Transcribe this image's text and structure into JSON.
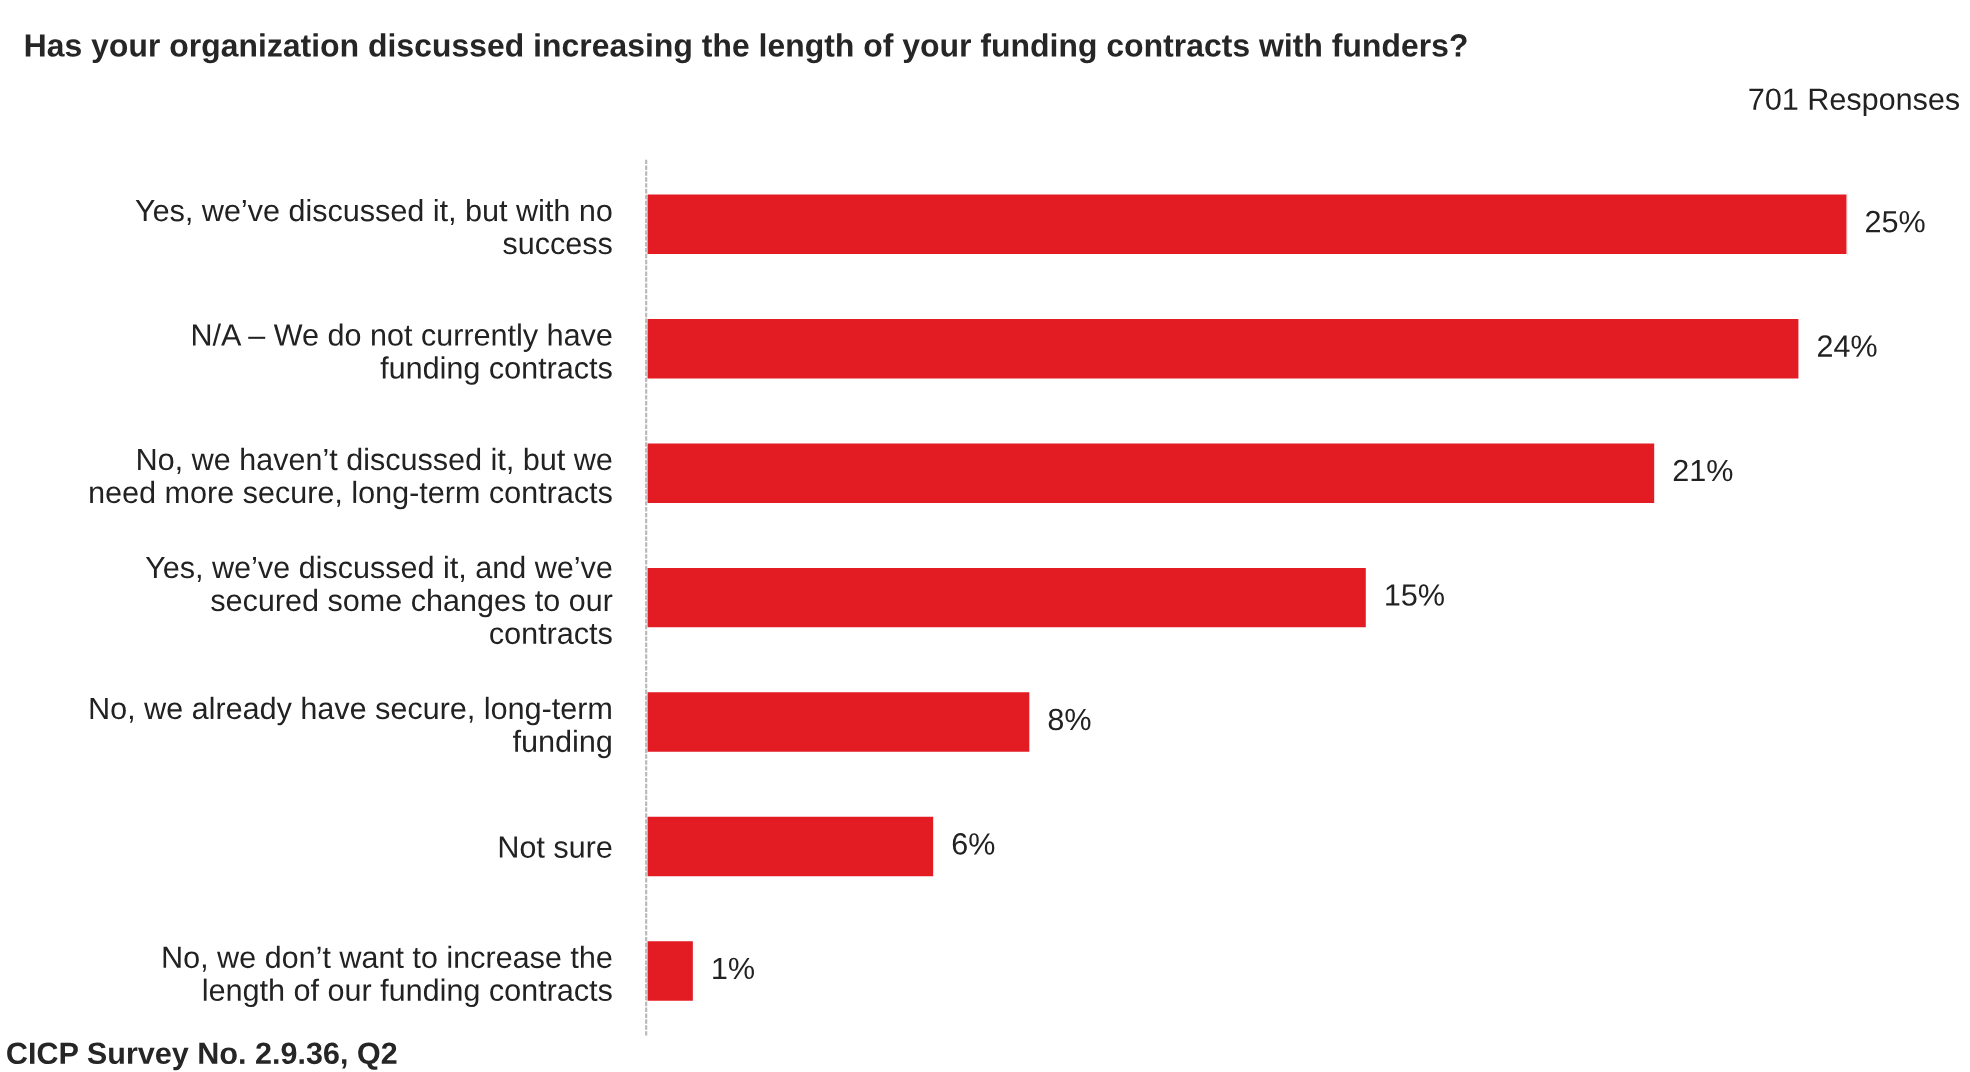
{
  "chart_data": {
    "type": "bar",
    "orientation": "horizontal",
    "title": "Has your organization discussed increasing the length of your funding contracts with funders?",
    "subtitle": "701 Responses",
    "categories": [
      "Yes, we’ve discussed it, but with no\nsuccess",
      "N/A – We do not currently have\nfunding contracts",
      "No, we haven’t discussed it, but we\nneed more secure, long-term contracts",
      "Yes, we’ve discussed it, and we’ve\nsecured some changes to our\ncontracts",
      "No, we already have secure, long-term\nfunding",
      "Not sure",
      "No, we don’t want to increase the\nlength of our funding contracts"
    ],
    "values": [
      25,
      24,
      21,
      15,
      8,
      6,
      1
    ],
    "value_labels": [
      "25%",
      "24%",
      "21%",
      "15%",
      "8%",
      "6%",
      "1%"
    ],
    "color": "#e31b23",
    "tick_labels": "y",
    "grid": false,
    "legend": false,
    "annotations": [
      "CICP Survey No. 2.9.36, Q2"
    ]
  }
}
